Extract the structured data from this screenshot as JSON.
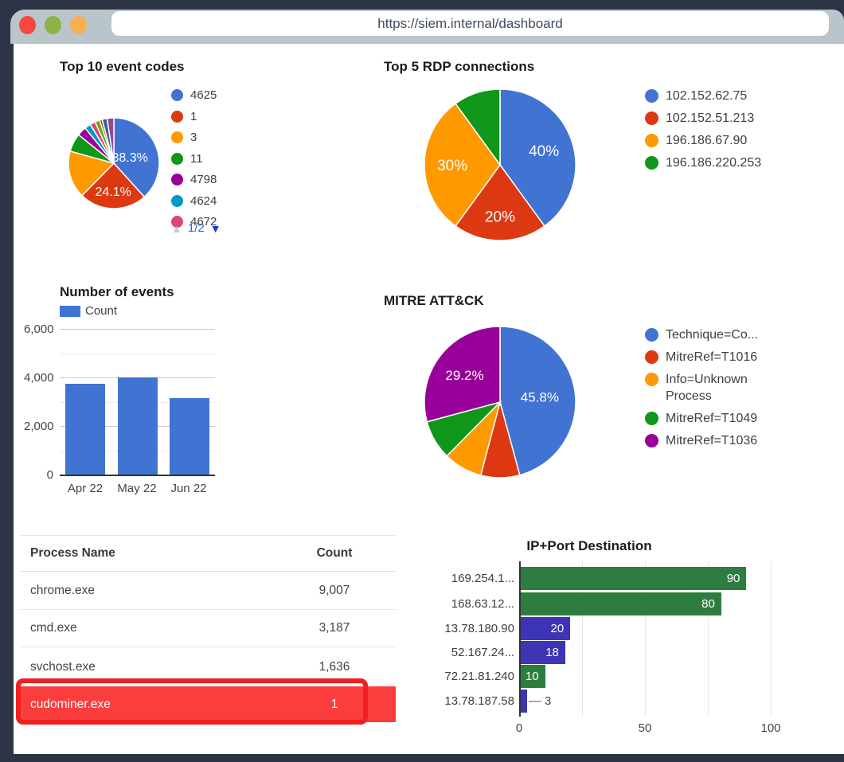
{
  "theme": {
    "frame": "#2d3446",
    "header_bg": "#b9c4cb",
    "traffic_red": "#f6483e",
    "traffic_green": "#8cb442",
    "traffic_yellow": "#f6b051",
    "url_text": "#3e4a5a",
    "highlight_fill": "#fc3d3d",
    "highlight_border": "#ee2020",
    "accent_blue": "#4173d2"
  },
  "browser": {
    "url": "https://siem.internal/dashboard"
  },
  "chart_data": [
    {
      "id": "event-codes",
      "type": "pie",
      "title": "Top 10 event codes",
      "legend_position": "right",
      "legend_pagination": "1/2",
      "slices": [
        {
          "label": "4625",
          "value": 38.3,
          "color": "#4173d2",
          "pct_label": "38.3%"
        },
        {
          "label": "1",
          "value": 24.1,
          "color": "#dc3912",
          "pct_label": "24.1%"
        },
        {
          "label": "3",
          "value": 16.9,
          "color": "#ff9900"
        },
        {
          "label": "11",
          "value": 6.5,
          "color": "#109618"
        },
        {
          "label": "4798",
          "value": 3.3,
          "color": "#990099"
        },
        {
          "label": "4624",
          "value": 2.2,
          "color": "#0099c6"
        },
        {
          "label": "4672",
          "value": 1.9,
          "color": "#dd4477"
        },
        {
          "label": "",
          "value": 1.7,
          "color": "#66aa00"
        },
        {
          "label": "",
          "value": 0.9,
          "color": "#b82e2e"
        },
        {
          "label": "",
          "value": 1.8,
          "color": "#316395"
        },
        {
          "label": "",
          "value": 2.4,
          "color": "#994499"
        }
      ],
      "legend_visible": [
        "4625",
        "1",
        "3",
        "11",
        "4798",
        "4624",
        "4672"
      ]
    },
    {
      "id": "rdp-connections",
      "type": "pie",
      "title": "Top 5 RDP connections",
      "legend_position": "right",
      "slices": [
        {
          "label": "102.152.62.75",
          "value": 40,
          "color": "#4173d2",
          "pct_label": "40%"
        },
        {
          "label": "102.152.51.213",
          "value": 20,
          "color": "#dc3912",
          "pct_label": "20%"
        },
        {
          "label": "196.186.67.90",
          "value": 30,
          "color": "#ff9900",
          "pct_label": "30%"
        },
        {
          "label": "196.186.220.253",
          "value": 10,
          "color": "#109618"
        }
      ]
    },
    {
      "id": "number-of-events",
      "type": "bar",
      "title": "Number of events",
      "series": [
        {
          "name": "Count",
          "color": "#4173d2"
        }
      ],
      "categories": [
        "Apr 22",
        "May 22",
        "Jun 22"
      ],
      "values": [
        3750,
        4000,
        3150
      ],
      "ylim": [
        0,
        6000
      ],
      "yticks": [
        {
          "v": 0,
          "label": "0"
        },
        {
          "v": 2000,
          "label": "2,000"
        },
        {
          "v": 4000,
          "label": "4,000"
        },
        {
          "v": 6000,
          "label": "6,000"
        }
      ],
      "minor_gridlines": [
        1000,
        3000,
        5000
      ],
      "grid": true
    },
    {
      "id": "mitre-attack",
      "type": "pie",
      "title": "MITRE ATT&CK",
      "legend_position": "right",
      "slices": [
        {
          "label": "Technique=Co...",
          "value": 45.8,
          "color": "#4173d2",
          "pct_label": "45.8%"
        },
        {
          "label": "MitreRef=T1016",
          "value": 8.3,
          "color": "#dc3912"
        },
        {
          "label": "Info=Unknown Process",
          "value": 8.3,
          "color": "#ff9900"
        },
        {
          "label": "MitreRef=T1049",
          "value": 8.4,
          "color": "#109618"
        },
        {
          "label": "MitreRef=T1036",
          "value": 29.2,
          "color": "#990099",
          "pct_label": "29.2%"
        }
      ]
    },
    {
      "id": "ip-port-destination",
      "type": "bar-horizontal",
      "title": "IP+Port Destination",
      "categories": [
        "169.254.1...",
        "168.63.12...",
        "13.78.180.90",
        "52.167.24...",
        "72.21.81.240",
        "13.78.187.58"
      ],
      "values": [
        90,
        80,
        20,
        18,
        10,
        3
      ],
      "bar_colors": [
        "#2e7d40",
        "#2e7d40",
        "#3d35b5",
        "#3d35b5",
        "#2e7d40",
        "#3d35b5"
      ],
      "xlim": [
        0,
        110
      ],
      "xticks": [
        {
          "v": 0,
          "label": "0"
        },
        {
          "v": 50,
          "label": "50"
        },
        {
          "v": 100,
          "label": "100"
        }
      ],
      "minor_gridlines": [
        25,
        75
      ],
      "grid": true
    }
  ],
  "table": {
    "columns": [
      "Process Name",
      "Count"
    ],
    "rows": [
      {
        "process": "chrome.exe",
        "count": "9,007",
        "highlighted": false
      },
      {
        "process": "cmd.exe",
        "count": "3,187",
        "highlighted": false
      },
      {
        "process": "svchost.exe",
        "count": "1,636",
        "highlighted": false
      },
      {
        "process": "cudominer.exe",
        "count": "1",
        "highlighted": true
      }
    ]
  }
}
